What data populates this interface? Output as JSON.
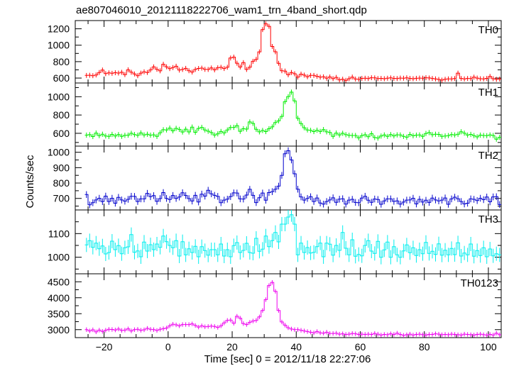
{
  "chart_data": {
    "type": "line",
    "title": "ae807046010_20121118222706_wam1_trn_4band_short.qdp",
    "xlabel": "Time [sec] 0 = 2012/11/18 22:27:06",
    "ylabel": "Counts/sec",
    "xlim": [
      -29,
      104
    ],
    "x_ticks": [
      -20,
      0,
      20,
      40,
      60,
      80,
      100
    ],
    "x_tick_labels": [
      "−20",
      "0",
      "20",
      "40",
      "60",
      "80",
      "100"
    ],
    "bin_width": 1,
    "x_start": -26,
    "grid": false,
    "legend": "none",
    "panels": [
      {
        "name": "TH0",
        "color": "#ff0000",
        "ylim": [
          540,
          1300
        ],
        "yticks": [
          600,
          800,
          1000,
          1200
        ],
        "error": 30,
        "values": [
          632,
          634,
          629,
          638,
          668,
          698,
          654,
          663,
          658,
          665,
          661,
          670,
          642,
          700,
          671,
          650,
          629,
          660,
          676,
          668,
          699,
          736,
          707,
          688,
          768,
          737,
          715,
          728,
          744,
          697,
          705,
          718,
          689,
          673,
          705,
          717,
          721,
          706,
          705,
          723,
          700,
          725,
          731,
          716,
          732,
          844,
          855,
          781,
          734,
          788,
          705,
          732,
          804,
          828,
          919,
          1190,
          1260,
          1230,
          985,
          920,
          780,
          689,
          685,
          640,
          668,
          652,
          612,
          648,
          636,
          616,
          632,
          632,
          622,
          611,
          615,
          598,
          613,
          593,
          608,
          578,
          586,
          572,
          592,
          612,
          588,
          586,
          596,
          598,
          594,
          604,
          602,
          594,
          596,
          592,
          598,
          602,
          596,
          594,
          600,
          598,
          603,
          596,
          592,
          597,
          600,
          599,
          604,
          601,
          595,
          590,
          583,
          575,
          585,
          590,
          590,
          594,
          660,
          595,
          590,
          595,
          594,
          611,
          600,
          592,
          590,
          596,
          620,
          592,
          585,
          588
        ]
      },
      {
        "name": "TH1",
        "color": "#00ee00",
        "ylim": [
          460,
          1150
        ],
        "yticks": [
          600,
          800,
          1000
        ],
        "error": 28,
        "values": [
          580,
          585,
          565,
          603,
          574,
          590,
          571,
          566,
          588,
          571,
          586,
          567,
          578,
          580,
          600,
          586,
          579,
          604,
          582,
          590,
          580,
          583,
          566,
          606,
          639,
          637,
          657,
          627,
          654,
          643,
          614,
          645,
          615,
          668,
          611,
          653,
          665,
          637,
          623,
          608,
          581,
          594,
          620,
          604,
          636,
          663,
          665,
          684,
          622,
          650,
          646,
          724,
          708,
          644,
          616,
          631,
          619,
          650,
          670,
          718,
          736,
          785,
          945,
          1000,
          1050,
          955,
          765,
          706,
          661,
          637,
          632,
          619,
          634,
          620,
          641,
          616,
          609,
          567,
          603,
          582,
          600,
          585,
          578,
          576,
          576,
          550,
          575,
          584,
          562,
          596,
          554,
          548,
          570,
          582,
          566,
          586,
          572,
          583,
          582,
          566,
          558,
          588,
          573,
          580,
          582,
          566,
          598,
          608,
          585,
          590,
          588,
          566,
          571,
          575,
          586,
          582,
          590,
          617,
          602,
          581,
          588,
          575,
          561,
          580,
          576,
          574,
          582,
          576,
          536,
          556
        ]
      },
      {
        "name": "TH2",
        "color": "#0000cc",
        "ylim": [
          625,
          1040
        ],
        "yticks": [
          700,
          800,
          900,
          1000
        ],
        "error": 22,
        "values": [
          725,
          658,
          672,
          690,
          701,
          679,
          715,
          680,
          701,
          669,
          707,
          690,
          682,
          694,
          714,
          713,
          680,
          697,
          697,
          733,
          711,
          718,
          681,
          699,
          738,
          700,
          693,
          719,
          700,
          709,
          737,
          719,
          699,
          683,
          720,
          677,
          728,
          715,
          753,
          730,
          720,
          713,
          672,
          689,
          695,
          712,
          736,
          735,
          697,
          696,
          722,
          759,
          720,
          673,
          705,
          735,
          688,
          738,
          744,
          760,
          780,
          850,
          990,
          1010,
          950,
          860,
          760,
          710,
          689,
          700,
          711,
          680,
          703,
          670,
          663,
          680,
          690,
          704,
          675,
          695,
          698,
          663,
          689,
          694,
          674,
          672,
          702,
          714,
          688,
          675,
          696,
          693,
          662,
          684,
          697,
          697,
          681,
          684,
          663,
          676,
          689,
          690,
          701,
          664,
          694,
          676,
          688,
          674,
          702,
          690,
          684,
          689,
          703,
          662,
          697,
          708,
          698,
          680,
          664,
          669,
          697,
          694,
          686,
          701,
          692,
          709,
          678,
          710,
          711,
          660
        ]
      },
      {
        "name": "TH3",
        "color": "#00eeee",
        "ylim": [
          930,
          1200
        ],
        "yticks": [
          1000,
          1100
        ],
        "error": 30,
        "values": [
          1052,
          1070,
          1042,
          1060,
          1036,
          1048,
          1014,
          1020,
          1068,
          1032,
          1049,
          1015,
          1040,
          1044,
          1096,
          1021,
          1027,
          1002,
          1064,
          1026,
          1053,
          1032,
          1056,
          1042,
          1090,
          1066,
          1050,
          1040,
          1070,
          1005,
          1066,
          1010,
          1036,
          1020,
          1046,
          1002,
          1045,
          1028,
          1009,
          1032,
          1032,
          1010,
          1056,
          1005,
          1032,
          1002,
          1049,
          1062,
          1020,
          1029,
          1059,
          1020,
          1017,
          1080,
          1025,
          1034,
          1090,
          1045,
          1070,
          1105,
          1065,
          1140,
          1140,
          1170,
          1180,
          1140,
          1010,
          1060,
          1020,
          1041,
          1018,
          1021,
          1045,
          1060,
          1002,
          1060,
          1055,
          1009,
          1050,
          1029,
          1105,
          1038,
          1010,
          1074,
          1004,
          1012,
          1006,
          1050,
          1070,
          1026,
          1016,
          1067,
          1000,
          1031,
          1064,
          1000,
          1045,
          1010,
          1000,
          1027,
          1052,
          1019,
          1040,
          1007,
          1032,
          1015,
          1063,
          1016,
          1025,
          1012,
          1057,
          1009,
          1030,
          1010,
          1037,
          1011,
          1061,
          1005,
          1018,
          1010,
          1056,
          1004,
          1028,
          1007,
          1040,
          1002,
          1035,
          1006,
          1015,
          1010
        ]
      },
      {
        "name": "TH0123",
        "color": "#ee00ee",
        "ylim": [
          2750,
          4750
        ],
        "yticks": [
          3000,
          3500,
          4000,
          4500
        ],
        "error": 70,
        "values": [
          3000,
          2960,
          2995,
          2930,
          2985,
          2945,
          2980,
          3010,
          3005,
          2990,
          3020,
          2975,
          2985,
          3025,
          2960,
          3000,
          3010,
          2980,
          2995,
          3040,
          3010,
          3000,
          2975,
          3010,
          3030,
          3050,
          3120,
          3170,
          3150,
          3120,
          3160,
          3160,
          3160,
          3180,
          3130,
          3080,
          3120,
          3090,
          3100,
          3110,
          3100,
          3070,
          3120,
          3210,
          3290,
          3300,
          3200,
          3420,
          3360,
          3190,
          3160,
          3230,
          3270,
          3290,
          3400,
          3600,
          3940,
          4380,
          4480,
          4200,
          3600,
          3240,
          3140,
          3060,
          3020,
          3000,
          3000,
          2980,
          2960,
          2940,
          2920,
          2900,
          2940,
          2900,
          2890,
          2920,
          2880,
          2880,
          2890,
          2860,
          2870,
          2850,
          2860,
          2880,
          2870,
          2850,
          2860,
          2850,
          2860,
          2850,
          2880,
          2860,
          2830,
          2850,
          2840,
          2870,
          2850,
          2890,
          2850,
          2820,
          2840,
          2860,
          2830,
          2850,
          2860,
          2840,
          2830,
          2850,
          2850,
          2870,
          2860,
          2840,
          2850,
          2840,
          2860,
          2850,
          2840,
          2830,
          2860,
          2850,
          2840,
          2830,
          2850,
          2860,
          2840,
          2830,
          2850,
          2830,
          2890,
          2840
        ]
      }
    ]
  }
}
